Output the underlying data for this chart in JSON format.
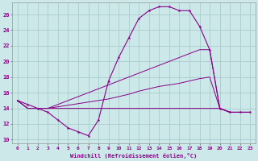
{
  "xlabel": "Windchill (Refroidissement éolien,°C)",
  "bg_color": "#cce8e8",
  "grid_color": "#aacccc",
  "line_color": "#880088",
  "x_hours": [
    0,
    1,
    2,
    3,
    4,
    5,
    6,
    7,
    8,
    9,
    10,
    11,
    12,
    13,
    14,
    15,
    16,
    17,
    18,
    19,
    20,
    21,
    22,
    23
  ],
  "line1": [
    15.0,
    14.5,
    14.0,
    13.5,
    12.5,
    11.5,
    11.0,
    10.5,
    12.5,
    17.5,
    20.5,
    23.0,
    25.5,
    26.5,
    27.0,
    27.0,
    26.5,
    26.5,
    24.5,
    21.5,
    14.0,
    13.5,
    13.5,
    13.5
  ],
  "line2": [
    15.0,
    14.0,
    14.0,
    14.0,
    14.0,
    14.0,
    14.0,
    14.0,
    14.0,
    14.0,
    14.0,
    14.0,
    14.0,
    14.0,
    14.0,
    14.0,
    14.0,
    14.0,
    14.0,
    14.0,
    14.0,
    13.5,
    13.5,
    13.5
  ],
  "line3": [
    15.0,
    14.0,
    14.0,
    14.0,
    14.2,
    14.4,
    14.6,
    14.8,
    15.0,
    15.2,
    15.5,
    15.8,
    16.2,
    16.5,
    16.8,
    17.0,
    17.2,
    17.5,
    17.8,
    18.0,
    14.0,
    13.5,
    13.5,
    13.5
  ],
  "line4": [
    15.0,
    14.0,
    14.0,
    14.0,
    14.5,
    15.0,
    15.5,
    16.0,
    16.5,
    17.0,
    17.5,
    18.0,
    18.5,
    19.0,
    19.5,
    20.0,
    20.5,
    21.0,
    21.5,
    21.5,
    14.0,
    13.5,
    13.5,
    13.5
  ],
  "ylim": [
    9.5,
    27.5
  ],
  "xlim": [
    -0.5,
    23.5
  ],
  "yticks": [
    10,
    12,
    14,
    16,
    18,
    20,
    22,
    24,
    26
  ],
  "xticks": [
    0,
    1,
    2,
    3,
    4,
    5,
    6,
    7,
    8,
    9,
    10,
    11,
    12,
    13,
    14,
    15,
    16,
    17,
    18,
    19,
    20,
    21,
    22,
    23
  ]
}
